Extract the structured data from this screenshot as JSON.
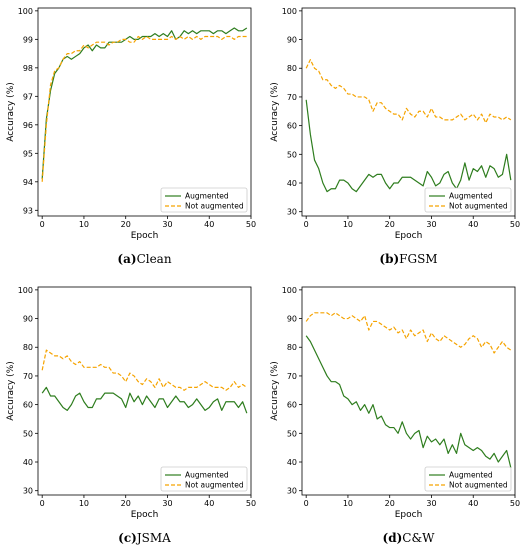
{
  "colors": {
    "augmented": "#2e7d1e",
    "not_augmented": "#f5a300"
  },
  "chart_data": [
    {
      "type": "line",
      "caption_letter": "(a)",
      "caption_text": "Clean",
      "xlabel": "Epoch",
      "ylabel": "Accuracy (%)",
      "xlim": [
        -1,
        50
      ],
      "ylim": [
        92.8,
        100.1
      ],
      "xticks": [
        0,
        10,
        20,
        30,
        40,
        50
      ],
      "yticks": [
        93,
        94,
        95,
        96,
        97,
        98,
        99,
        100
      ],
      "legend_position": "bottom-right",
      "x": [
        0,
        1,
        2,
        3,
        4,
        5,
        6,
        7,
        8,
        9,
        10,
        11,
        12,
        13,
        14,
        15,
        16,
        17,
        18,
        19,
        20,
        21,
        22,
        23,
        24,
        25,
        26,
        27,
        28,
        29,
        30,
        31,
        32,
        33,
        34,
        35,
        36,
        37,
        38,
        39,
        40,
        41,
        42,
        43,
        44,
        45,
        46,
        47,
        48,
        49
      ],
      "series": [
        {
          "name": "Augmented",
          "style": "solid",
          "values": [
            94.1,
            96.2,
            97.2,
            97.8,
            98.0,
            98.3,
            98.4,
            98.3,
            98.4,
            98.5,
            98.7,
            98.8,
            98.6,
            98.8,
            98.7,
            98.7,
            98.9,
            98.9,
            98.9,
            98.9,
            99.0,
            99.1,
            99.0,
            99.0,
            99.1,
            99.1,
            99.1,
            99.2,
            99.1,
            99.2,
            99.1,
            99.3,
            99.0,
            99.1,
            99.3,
            99.2,
            99.3,
            99.2,
            99.3,
            99.3,
            99.3,
            99.2,
            99.3,
            99.3,
            99.2,
            99.3,
            99.4,
            99.3,
            99.3,
            99.4
          ]
        },
        {
          "name": "Not augmented",
          "style": "dashed",
          "values": [
            94.0,
            96.0,
            97.4,
            97.9,
            98.0,
            98.3,
            98.5,
            98.5,
            98.6,
            98.6,
            98.8,
            98.7,
            98.8,
            98.9,
            98.9,
            98.9,
            98.8,
            98.9,
            98.9,
            99.0,
            99.0,
            98.9,
            98.9,
            99.1,
            99.0,
            99.1,
            99.0,
            99.0,
            99.0,
            99.0,
            99.0,
            99.1,
            99.0,
            99.1,
            99.0,
            99.1,
            99.0,
            99.1,
            99.0,
            99.1,
            99.1,
            99.1,
            99.1,
            99.0,
            99.1,
            99.1,
            99.0,
            99.1,
            99.1,
            99.1
          ]
        }
      ]
    },
    {
      "type": "line",
      "caption_letter": "(b)",
      "caption_text": "FGSM",
      "xlabel": "Epoch",
      "ylabel": "Accuracy (%)",
      "xlim": [
        -1,
        50
      ],
      "ylim": [
        28.5,
        101
      ],
      "xticks": [
        0,
        10,
        20,
        30,
        40,
        50
      ],
      "yticks": [
        30,
        40,
        50,
        60,
        70,
        80,
        90,
        100
      ],
      "legend_position": "bottom-right",
      "x": [
        0,
        1,
        2,
        3,
        4,
        5,
        6,
        7,
        8,
        9,
        10,
        11,
        12,
        13,
        14,
        15,
        16,
        17,
        18,
        19,
        20,
        21,
        22,
        23,
        24,
        25,
        26,
        27,
        28,
        29,
        30,
        31,
        32,
        33,
        34,
        35,
        36,
        37,
        38,
        39,
        40,
        41,
        42,
        43,
        44,
        45,
        46,
        47,
        48,
        49
      ],
      "series": [
        {
          "name": "Augmented",
          "style": "solid",
          "values": [
            69,
            57,
            48,
            45,
            40,
            37,
            38,
            38,
            41,
            41,
            40,
            38,
            37,
            39,
            41,
            43,
            42,
            43,
            43,
            40,
            38,
            40,
            40,
            42,
            42,
            42,
            41,
            40,
            39,
            44,
            42,
            39,
            40,
            43,
            44,
            40,
            38,
            41,
            47,
            41,
            45,
            44,
            46,
            42,
            46,
            45,
            42,
            43,
            50,
            41
          ]
        },
        {
          "name": "Not augmented",
          "style": "dashed",
          "values": [
            80,
            83,
            80,
            79,
            76,
            76,
            74,
            73,
            74,
            73,
            71,
            71,
            70,
            70,
            70,
            69,
            65,
            68,
            68,
            66,
            65,
            64,
            64,
            62,
            66,
            64,
            63,
            65,
            65,
            63,
            66,
            63,
            63,
            62,
            62,
            62,
            63,
            64,
            62,
            63,
            64,
            62,
            64,
            61,
            64,
            63,
            63,
            62,
            63,
            62
          ]
        }
      ]
    },
    {
      "type": "line",
      "caption_letter": "(c)",
      "caption_text": "JSMA",
      "xlabel": "Epoch",
      "ylabel": "Accuracy (%)",
      "xlim": [
        -1,
        50
      ],
      "ylim": [
        28.5,
        101
      ],
      "xticks": [
        0,
        10,
        20,
        30,
        40,
        50
      ],
      "yticks": [
        30,
        40,
        50,
        60,
        70,
        80,
        90,
        100
      ],
      "legend_position": "bottom-right",
      "x": [
        0,
        1,
        2,
        3,
        4,
        5,
        6,
        7,
        8,
        9,
        10,
        11,
        12,
        13,
        14,
        15,
        16,
        17,
        18,
        19,
        20,
        21,
        22,
        23,
        24,
        25,
        26,
        27,
        28,
        29,
        30,
        31,
        32,
        33,
        34,
        35,
        36,
        37,
        38,
        39,
        40,
        41,
        42,
        43,
        44,
        45,
        46,
        47,
        48,
        49
      ],
      "series": [
        {
          "name": "Augmented",
          "style": "solid",
          "values": [
            64,
            66,
            63,
            63,
            61,
            59,
            58,
            60,
            63,
            64,
            61,
            59,
            59,
            62,
            62,
            64,
            64,
            64,
            63,
            62,
            59,
            64,
            61,
            63,
            60,
            63,
            61,
            59,
            62,
            62,
            59,
            61,
            63,
            61,
            61,
            59,
            60,
            62,
            60,
            58,
            59,
            61,
            62,
            58,
            61,
            61,
            61,
            59,
            61,
            57
          ]
        },
        {
          "name": "Not augmented",
          "style": "dashed",
          "values": [
            72,
            79,
            78,
            77,
            77,
            76,
            77,
            75,
            74,
            75,
            73,
            73,
            73,
            73,
            74,
            73,
            73,
            71,
            71,
            70,
            68,
            71,
            70,
            68,
            67,
            69,
            68,
            66,
            69,
            66,
            68,
            67,
            66,
            66,
            65,
            66,
            66,
            66,
            67,
            68,
            67,
            66,
            66,
            66,
            65,
            66,
            68,
            66,
            67,
            66
          ]
        }
      ]
    },
    {
      "type": "line",
      "caption_letter": "(d)",
      "caption_text": "C&W",
      "xlabel": "Epoch",
      "ylabel": "Accuracy (%)",
      "xlim": [
        -1,
        50
      ],
      "ylim": [
        28.5,
        101
      ],
      "xticks": [
        0,
        10,
        20,
        30,
        40,
        50
      ],
      "yticks": [
        30,
        40,
        50,
        60,
        70,
        80,
        90,
        100
      ],
      "legend_position": "bottom-right",
      "x": [
        0,
        1,
        2,
        3,
        4,
        5,
        6,
        7,
        8,
        9,
        10,
        11,
        12,
        13,
        14,
        15,
        16,
        17,
        18,
        19,
        20,
        21,
        22,
        23,
        24,
        25,
        26,
        27,
        28,
        29,
        30,
        31,
        32,
        33,
        34,
        35,
        36,
        37,
        38,
        39,
        40,
        41,
        42,
        43,
        44,
        45,
        46,
        47,
        48,
        49
      ],
      "series": [
        {
          "name": "Augmented",
          "style": "solid",
          "values": [
            84,
            82,
            79,
            76,
            73,
            70,
            68,
            68,
            67,
            63,
            62,
            60,
            61,
            58,
            60,
            57,
            60,
            55,
            56,
            53,
            52,
            52,
            50,
            54,
            50,
            48,
            50,
            51,
            45,
            49,
            47,
            48,
            46,
            48,
            43,
            46,
            43,
            50,
            46,
            45,
            44,
            45,
            44,
            42,
            41,
            43,
            40,
            42,
            44,
            38
          ]
        },
        {
          "name": "Not augmented",
          "style": "dashed",
          "values": [
            89,
            91,
            92,
            92,
            92,
            92,
            91,
            92,
            91,
            90,
            90,
            91,
            90,
            89,
            91,
            86,
            89,
            89,
            88,
            87,
            86,
            87,
            85,
            86,
            83,
            86,
            84,
            85,
            86,
            82,
            85,
            83,
            82,
            84,
            83,
            82,
            81,
            80,
            81,
            83,
            84,
            83,
            80,
            82,
            81,
            78,
            80,
            82,
            80,
            79
          ]
        }
      ]
    }
  ]
}
